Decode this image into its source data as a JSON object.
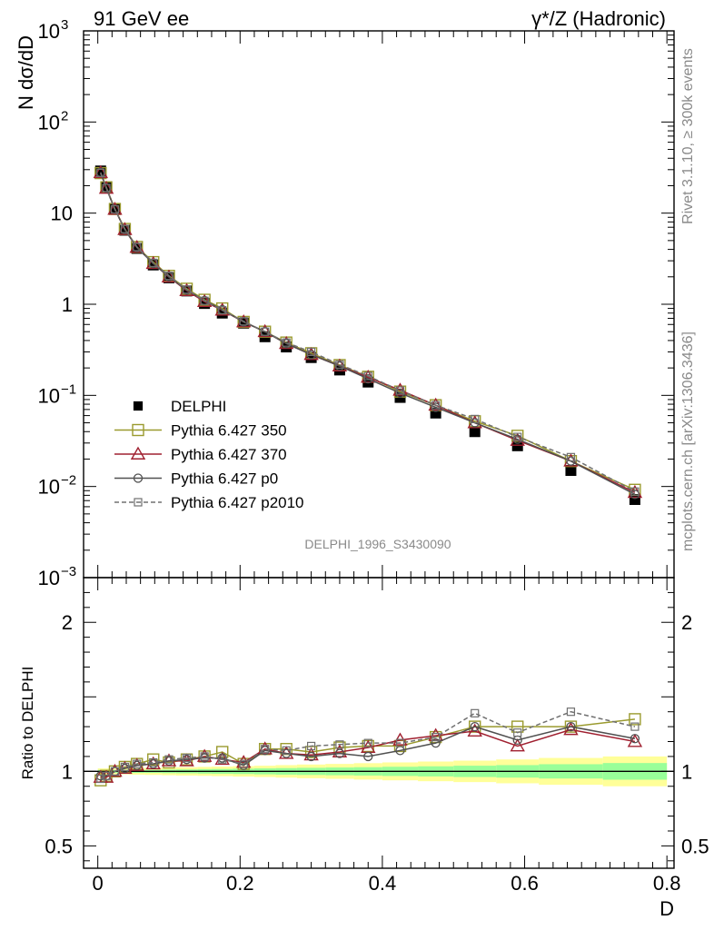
{
  "header": {
    "left": "91 GeV ee",
    "right": "γ*/Z (Hadronic)"
  },
  "side_labels": {
    "rivet": "Rivet 3.1.10, ≥ 300k events",
    "mcplots": "mcplots.cern.ch [arXiv:1306.3436]"
  },
  "watermark": "DELPHI_1996_S3430090",
  "chart_data": [
    {
      "type": "line",
      "ylabel": "N dσ/dD",
      "yscale": "log",
      "ylim": [
        0.001,
        1000
      ],
      "xlim": [
        -0.02,
        0.81
      ],
      "y_ticks": [
        {
          "value": 1000,
          "label": "10",
          "sup": "3"
        },
        {
          "value": 100,
          "label": "10",
          "sup": "2"
        },
        {
          "value": 10,
          "label": "10",
          "sup": ""
        },
        {
          "value": 1,
          "label": "1",
          "sup": ""
        },
        {
          "value": 0.1,
          "label": "10",
          "sup": "−1"
        },
        {
          "value": 0.01,
          "label": "10",
          "sup": "−2"
        },
        {
          "value": 0.001,
          "label": "10",
          "sup": "−3"
        }
      ],
      "x": [
        0.004,
        0.012,
        0.024,
        0.038,
        0.055,
        0.078,
        0.1,
        0.125,
        0.15,
        0.175,
        0.205,
        0.235,
        0.265,
        0.3,
        0.34,
        0.38,
        0.425,
        0.475,
        0.53,
        0.59,
        0.665,
        0.755
      ],
      "legend": {
        "placement": "lower-left",
        "entries": [
          "DELPHI",
          "Pythia 6.427 350",
          "Pythia 6.427 370",
          "Pythia 6.427 p0",
          "Pythia 6.427 p2010"
        ]
      },
      "series": [
        {
          "name": "DELPHI",
          "color": "#000000",
          "marker": "filled-square",
          "values": [
            29,
            19.5,
            11,
            6.5,
            4.1,
            2.7,
            1.95,
            1.4,
            1.02,
            0.8,
            0.62,
            0.44,
            0.34,
            0.26,
            0.19,
            0.14,
            0.095,
            0.064,
            0.04,
            0.028,
            0.015,
            0.0072
          ]
        },
        {
          "name": "Pythia 6.427 350",
          "color": "#9a9a2e",
          "marker": "open-square",
          "values": [
            27.5,
            19.2,
            11.1,
            6.7,
            4.25,
            2.9,
            2.05,
            1.48,
            1.12,
            0.9,
            0.64,
            0.5,
            0.38,
            0.29,
            0.215,
            0.16,
            0.11,
            0.078,
            0.052,
            0.036,
            0.019,
            0.0092
          ]
        },
        {
          "name": "Pythia 6.427 370",
          "color": "#a02030",
          "marker": "open-triangle",
          "values": [
            27.8,
            18.7,
            11.0,
            6.6,
            4.2,
            2.8,
            1.99,
            1.41,
            1.07,
            0.86,
            0.64,
            0.5,
            0.37,
            0.28,
            0.21,
            0.158,
            0.114,
            0.078,
            0.05,
            0.032,
            0.019,
            0.0086
          ]
        },
        {
          "name": "Pythia 6.427 p0",
          "color": "#505050",
          "marker": "open-circle",
          "values": [
            28,
            18.8,
            11.0,
            6.6,
            4.2,
            2.8,
            2.0,
            1.43,
            1.1,
            0.87,
            0.64,
            0.5,
            0.37,
            0.28,
            0.21,
            0.152,
            0.106,
            0.074,
            0.05,
            0.033,
            0.019,
            0.0082
          ]
        },
        {
          "name": "Pythia 6.427 p2010",
          "color": "#707070",
          "marker": "open-square-small",
          "dashed": true,
          "values": [
            27.6,
            18.9,
            11.0,
            6.7,
            4.25,
            2.85,
            2.05,
            1.45,
            1.09,
            0.86,
            0.65,
            0.5,
            0.38,
            0.3,
            0.218,
            0.163,
            0.113,
            0.078,
            0.055,
            0.035,
            0.021,
            0.0088
          ]
        }
      ]
    },
    {
      "type": "line",
      "xlabel": "D",
      "ylabel": "Ratio to DELPHI",
      "ylim": [
        0.35,
        2.3
      ],
      "xlim": [
        -0.02,
        0.81
      ],
      "x_ticks": [
        {
          "value": 0,
          "label": "0"
        },
        {
          "value": 0.2,
          "label": "0.2"
        },
        {
          "value": 0.4,
          "label": "0.4"
        },
        {
          "value": 0.6,
          "label": "0.6"
        },
        {
          "value": 0.8,
          "label": "0.8"
        }
      ],
      "y_ticks": [
        {
          "value": 2,
          "label": "2"
        },
        {
          "value": 1,
          "label": "1"
        },
        {
          "value": 0.5,
          "label": "0.5"
        }
      ],
      "bands": {
        "bins": [
          0,
          0.008,
          0.016,
          0.032,
          0.044,
          0.066,
          0.09,
          0.11,
          0.14,
          0.16,
          0.19,
          0.22,
          0.25,
          0.28,
          0.32,
          0.36,
          0.4,
          0.45,
          0.5,
          0.56,
          0.62,
          0.71,
          0.8
        ],
        "stat_half_width": [
          0.01,
          0.01,
          0.01,
          0.01,
          0.01,
          0.01,
          0.012,
          0.013,
          0.015,
          0.016,
          0.018,
          0.02,
          0.022,
          0.024,
          0.026,
          0.028,
          0.031,
          0.034,
          0.038,
          0.042,
          0.048,
          0.056
        ],
        "total_half_width": [
          0.02,
          0.02,
          0.02,
          0.02,
          0.022,
          0.024,
          0.026,
          0.028,
          0.03,
          0.032,
          0.035,
          0.038,
          0.042,
          0.046,
          0.05,
          0.055,
          0.06,
          0.066,
          0.072,
          0.08,
          0.09,
          0.1
        ],
        "stat_color": "#99ff99",
        "total_color": "#ffff99"
      },
      "series": [
        {
          "name": "Pythia 6.427 350",
          "color": "#9a9a2e",
          "marker": "open-square",
          "values": [
            0.94,
            0.97,
            1.0,
            1.03,
            1.05,
            1.08,
            1.06,
            1.08,
            1.1,
            1.13,
            1.05,
            1.15,
            1.15,
            1.13,
            1.16,
            1.17,
            1.17,
            1.23,
            1.3,
            1.3,
            1.3,
            1.35
          ]
        },
        {
          "name": "Pythia 6.427 370",
          "color": "#a02030",
          "marker": "open-triangle",
          "values": [
            0.96,
            0.96,
            1.0,
            1.02,
            1.04,
            1.05,
            1.07,
            1.07,
            1.1,
            1.08,
            1.06,
            1.15,
            1.12,
            1.11,
            1.13,
            1.16,
            1.21,
            1.24,
            1.27,
            1.17,
            1.28,
            1.2
          ]
        },
        {
          "name": "Pythia 6.427 p0",
          "color": "#505050",
          "marker": "open-circle",
          "values": [
            0.97,
            0.97,
            1.0,
            1.02,
            1.04,
            1.05,
            1.07,
            1.08,
            1.09,
            1.09,
            1.04,
            1.14,
            1.12,
            1.1,
            1.12,
            1.1,
            1.14,
            1.19,
            1.3,
            1.21,
            1.3,
            1.22
          ]
        },
        {
          "name": "Pythia 6.427 p2010",
          "color": "#707070",
          "marker": "open-square-small",
          "dashed": true,
          "values": [
            0.95,
            0.97,
            1.0,
            1.03,
            1.05,
            1.06,
            1.08,
            1.09,
            1.1,
            1.08,
            1.05,
            1.15,
            1.14,
            1.17,
            1.18,
            1.19,
            1.19,
            1.23,
            1.39,
            1.26,
            1.4,
            1.3
          ]
        }
      ]
    }
  ]
}
